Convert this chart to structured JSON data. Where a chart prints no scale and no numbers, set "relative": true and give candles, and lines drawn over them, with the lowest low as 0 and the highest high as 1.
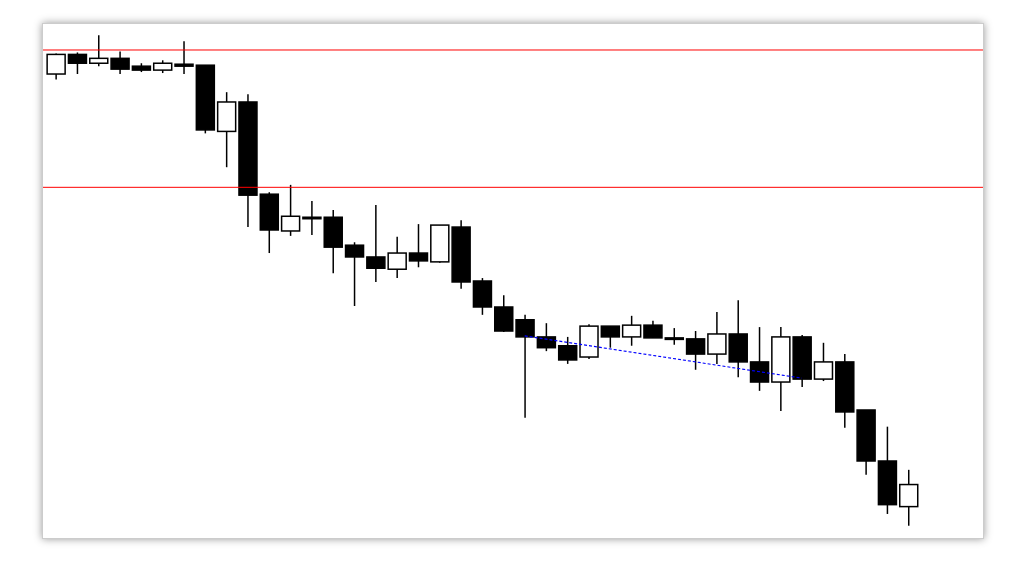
{
  "chart_data": {
    "type": "candlestick",
    "relative": true,
    "categories": [
      null,
      null,
      null,
      null,
      null,
      null,
      null,
      null,
      null,
      null,
      null,
      null,
      null,
      null,
      null,
      null,
      null,
      null,
      null,
      null,
      null,
      null,
      null,
      null,
      null,
      null,
      null,
      null,
      null,
      null,
      null,
      null,
      null,
      null,
      null,
      null,
      null,
      null,
      null,
      null,
      null
    ],
    "ohlc": [
      [
        0.921,
        0.963,
        0.91,
        0.961
      ],
      [
        0.961,
        0.965,
        0.921,
        0.943
      ],
      [
        0.943,
        1,
        0.937,
        0.953
      ],
      [
        0.953,
        0.967,
        0.921,
        0.931
      ],
      [
        0.937,
        0.943,
        0.925,
        0.929
      ],
      [
        0.929,
        0.949,
        0.923,
        0.943
      ],
      [
        0.941,
        0.988,
        0.921,
        0.937
      ],
      [
        0.939,
        0.939,
        0.8,
        0.807
      ],
      [
        0.804,
        0.884,
        0.731,
        0.864
      ],
      [
        0.864,
        0.88,
        0.609,
        0.674
      ],
      [
        0.676,
        0.68,
        0.556,
        0.603
      ],
      [
        0.601,
        0.695,
        0.591,
        0.631
      ],
      [
        0.629,
        0.662,
        0.593,
        0.629
      ],
      [
        0.629,
        0.644,
        0.515,
        0.568
      ],
      [
        0.572,
        0.578,
        0.448,
        0.548
      ],
      [
        0.548,
        0.654,
        0.497,
        0.525
      ],
      [
        0.523,
        0.589,
        0.505,
        0.556
      ],
      [
        0.556,
        0.615,
        0.527,
        0.54
      ],
      [
        0.538,
        0.613,
        0.536,
        0.613
      ],
      [
        0.609,
        0.623,
        0.483,
        0.497
      ],
      [
        0.499,
        0.505,
        0.43,
        0.446
      ],
      [
        0.446,
        0.47,
        0.395,
        0.397
      ],
      [
        0.42,
        0.43,
        0.22,
        0.385
      ],
      [
        0.385,
        0.413,
        0.356,
        0.363
      ],
      [
        0.367,
        0.385,
        0.33,
        0.338
      ],
      [
        0.344,
        0.411,
        0.34,
        0.407
      ],
      [
        0.407,
        0.407,
        0.363,
        0.385
      ],
      [
        0.385,
        0.428,
        0.367,
        0.409
      ],
      [
        0.409,
        0.418,
        0.383,
        0.383
      ],
      [
        0.383,
        0.403,
        0.369,
        0.383
      ],
      [
        0.381,
        0.397,
        0.318,
        0.35
      ],
      [
        0.35,
        0.436,
        0.33,
        0.391
      ],
      [
        0.391,
        0.46,
        0.303,
        0.334
      ],
      [
        0.334,
        0.405,
        0.275,
        0.293
      ],
      [
        0.293,
        0.405,
        0.234,
        0.385
      ],
      [
        0.385,
        0.389,
        0.283,
        0.299
      ],
      [
        0.299,
        0.373,
        0.295,
        0.334
      ],
      [
        0.334,
        0.35,
        0.2,
        0.232
      ],
      [
        0.236,
        0.236,
        0.104,
        0.132
      ],
      [
        0.132,
        0.202,
        0.024,
        0.043
      ],
      [
        0.039,
        0.114,
        0,
        0.084
      ]
    ],
    "series": [
      {
        "type": "line",
        "color": "#0000ff",
        "line_style": "dashed",
        "values": [
          null,
          null,
          null,
          null,
          null,
          null,
          null,
          null,
          null,
          null,
          null,
          null,
          null,
          null,
          null,
          null,
          null,
          null,
          null,
          null,
          null,
          null,
          0.387,
          null,
          null,
          null,
          null,
          null,
          null,
          null,
          null,
          null,
          null,
          null,
          null,
          0.301,
          null,
          null,
          null,
          null,
          null
        ]
      }
    ],
    "ref_lines": [
      {
        "axis": "y",
        "value": 0.97,
        "color": "#ff0000"
      },
      {
        "axis": "y",
        "value": 0.69,
        "color": "#ff0000"
      }
    ],
    "grid": false,
    "legend": false
  }
}
